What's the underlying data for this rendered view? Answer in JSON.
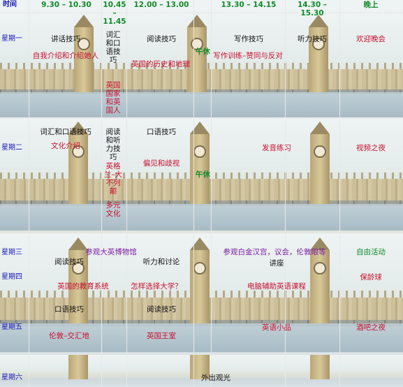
{
  "header": {
    "time_label": "时间",
    "slots": [
      "9.30 – 10.30",
      "10.45 – 11.45",
      "12.00 – 13.00",
      "13.30 – 14.15",
      "14.30 – 15.30",
      "晚上"
    ]
  },
  "days": {
    "mon": "星期一",
    "tue": "星期二",
    "wed": "星期三",
    "thu": "星期四",
    "fri": "星期五",
    "sat": "星期六"
  },
  "mon": {
    "s1_title": "讲话技巧",
    "s1_sub": "自我介绍和介绍她人",
    "s2_title": "词汇和口语技巧",
    "s2_sub": "英国国家和英国人",
    "s3_title": "阅读技巧",
    "s3_sub": "英国的历史和地理",
    "lunch": "午休",
    "s4_title": "写作技巧",
    "s4_sub": "写作训练–赞同与反对",
    "s5_title": "听力技巧",
    "evening": "欢迎晚会"
  },
  "tue": {
    "s1_title": "词汇和口语技巧",
    "s1_sub": "文化介绍",
    "s2_title": "阅读和听力技巧",
    "s2_sub": "英格兰–大不列颠",
    "s2_sub2": "多元文化",
    "s3_title": "口语技巧",
    "s3_sub": "偏见和歧视",
    "lunch": "午休",
    "s45": "发音练习",
    "evening": "视频之夜"
  },
  "wed": {
    "morning": "参观大英博物馆",
    "afternoon": "参观白金汉宫，议会，伦敦眼等",
    "evening": "自由活动"
  },
  "thu": {
    "s1_title": "阅读技巧",
    "s1_sub": "英国的教育系统",
    "s3_title": "听力和讨论",
    "s3_sub": "怎样选择大学？",
    "s45_title": "讲座",
    "s45_sub": "电脑辅助英语课程",
    "evening": "保龄球"
  },
  "fri": {
    "s1_title": "口语技巧",
    "s1_sub": "伦敦–交汇地",
    "s3_title": "阅读技巧",
    "s3_sub": "英国王室",
    "s45": "英语小品",
    "evening": "酒吧之夜"
  },
  "sat": {
    "all_day": "外出观光"
  }
}
